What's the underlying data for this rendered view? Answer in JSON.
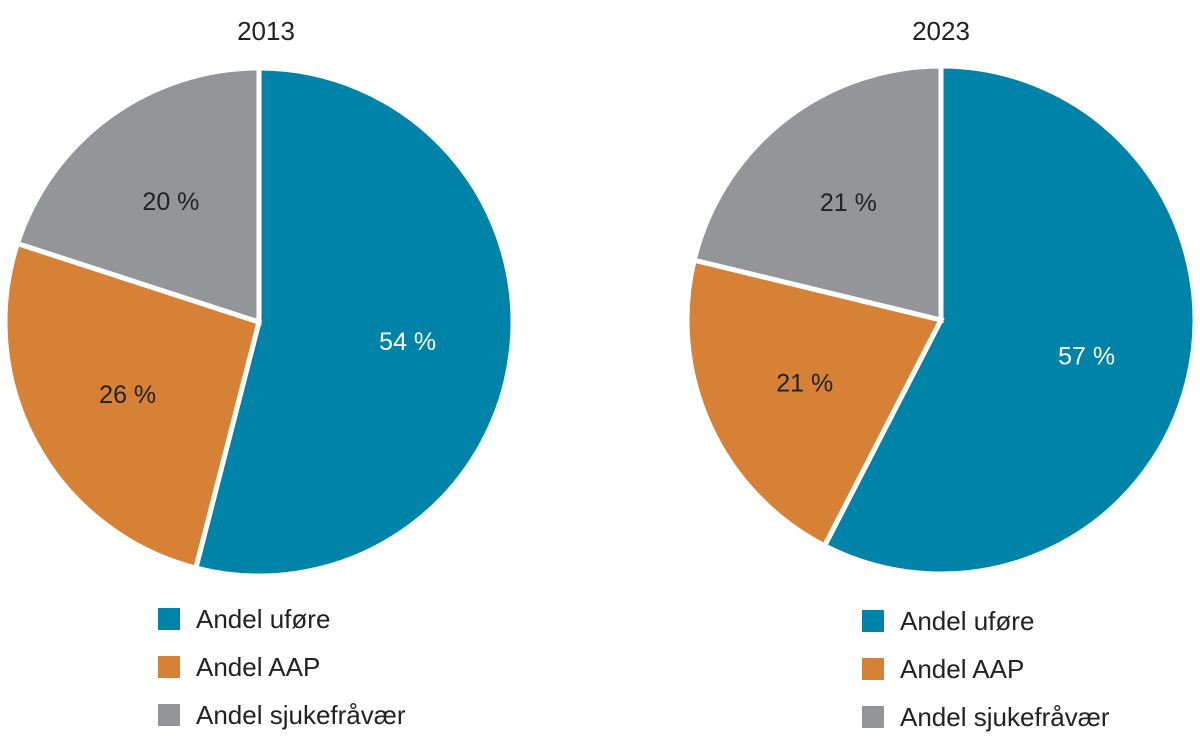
{
  "chart_data": [
    {
      "type": "pie",
      "title": "2013",
      "series": [
        {
          "name": "Andel uføre",
          "value": 54,
          "label": "54 %",
          "color": "#0083a8"
        },
        {
          "name": "Andel AAP",
          "value": 26,
          "label": "26 %",
          "color": "#d68136"
        },
        {
          "name": "Andel sjukefråvær",
          "value": 20,
          "label": "20 %",
          "color": "#939598"
        }
      ],
      "legend_position": "bottom"
    },
    {
      "type": "pie",
      "title": "2023",
      "series": [
        {
          "name": "Andel uføre",
          "value": 57,
          "label": "57 %",
          "color": "#0083a8"
        },
        {
          "name": "Andel AAP",
          "value": 21,
          "label": "21 %",
          "color": "#d68136"
        },
        {
          "name": "Andel sjukefråvær",
          "value": 21,
          "label": "21 %",
          "color": "#939598"
        }
      ],
      "legend_position": "bottom"
    }
  ]
}
